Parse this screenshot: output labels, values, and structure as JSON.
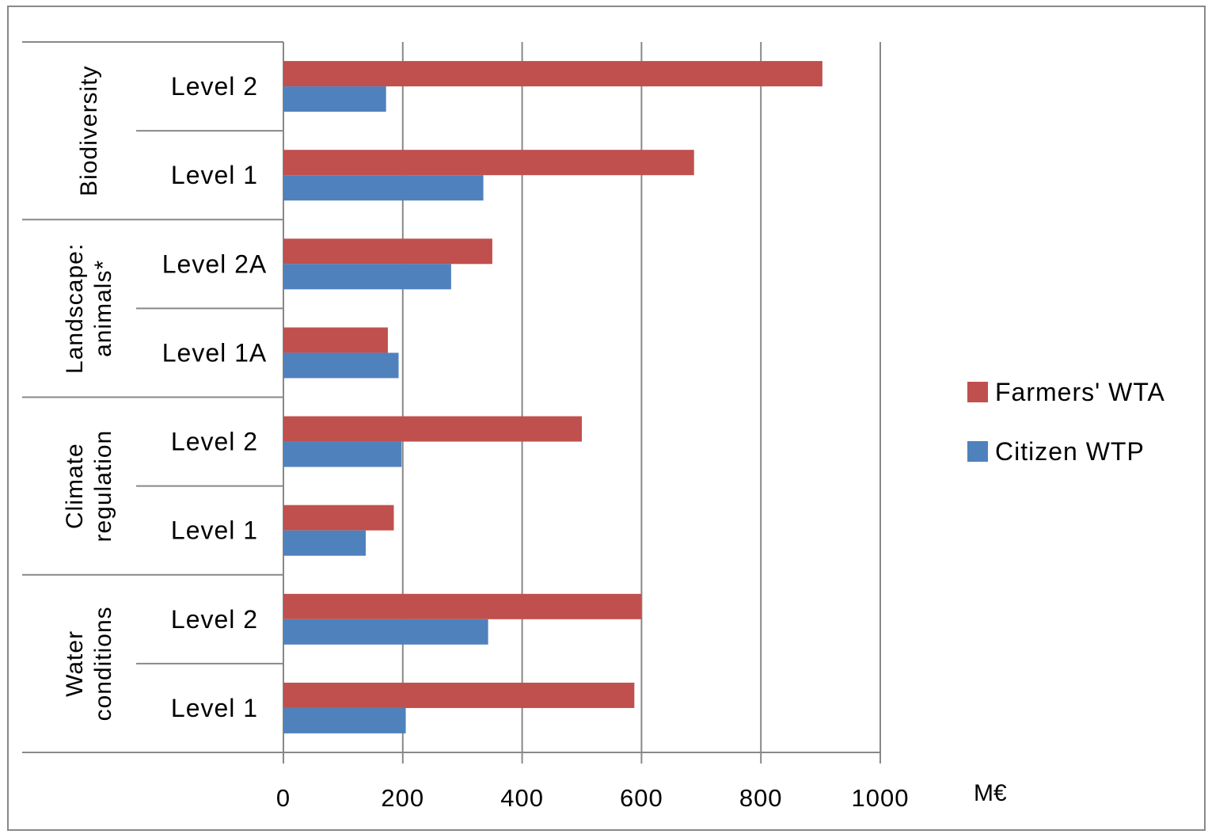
{
  "chart_data": {
    "type": "bar",
    "orientation": "horizontal",
    "unit_label": "M€",
    "xlim": [
      0,
      1000
    ],
    "x_ticks": [
      "0",
      "200",
      "400",
      "600",
      "800",
      "1000"
    ],
    "x_tick_values": [
      0,
      200,
      400,
      600,
      800,
      1000
    ],
    "grid": "vertical major gridlines",
    "legend_position": "right",
    "groups": [
      {
        "name": "Biodiversity",
        "name_lines": [
          "Biodiversity"
        ]
      },
      {
        "name": "Landscape: animals*",
        "name_lines": [
          "Landscape:",
          "animals*"
        ]
      },
      {
        "name": "Climate regulation",
        "name_lines": [
          "Climate",
          "regulation"
        ]
      },
      {
        "name": "Water conditions",
        "name_lines": [
          "Water",
          "conditions"
        ]
      }
    ],
    "categories": [
      {
        "group": 0,
        "label": "Level 2"
      },
      {
        "group": 0,
        "label": "Level 1"
      },
      {
        "group": 1,
        "label": "Level 2A"
      },
      {
        "group": 1,
        "label": "Level 1A"
      },
      {
        "group": 2,
        "label": "Level 2"
      },
      {
        "group": 2,
        "label": "Level 1"
      },
      {
        "group": 3,
        "label": "Level 2"
      },
      {
        "group": 3,
        "label": "Level 1"
      }
    ],
    "series": [
      {
        "name": "Farmers' WTA",
        "color": "#c0504d",
        "values": [
          903,
          688,
          350,
          175,
          500,
          185,
          600,
          588
        ]
      },
      {
        "name": "Citizen WTP",
        "color": "#4f81bd",
        "values": [
          172,
          335,
          281,
          193,
          198,
          138,
          343,
          205
        ]
      }
    ]
  }
}
